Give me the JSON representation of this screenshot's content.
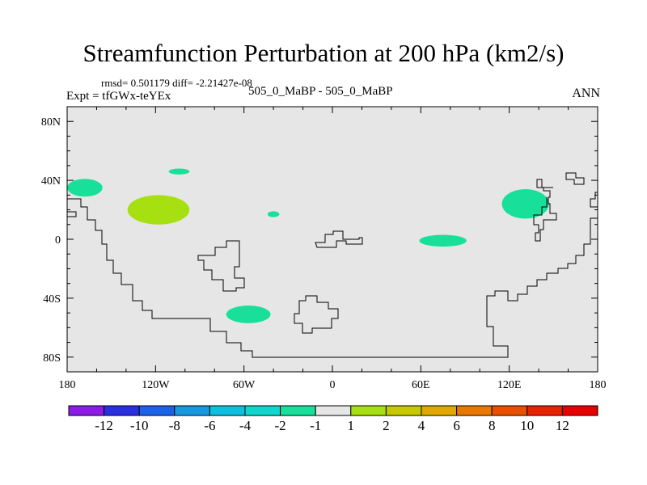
{
  "chart_data": {
    "type": "contour-map",
    "title": "Streamfunction Perturbation at 200 hPa (km2/s)",
    "stats": "rmsd= 0.501179 diff= -2.21427e-08",
    "experiment": "Expt = tfGWx-teYEx",
    "cases": "505_0_MaBP - 505_0_MaBP",
    "period": "ANN",
    "x_range": [
      -180,
      180
    ],
    "y_range": [
      -90,
      90
    ],
    "x_ticks": [
      {
        "value": -180,
        "label": "180"
      },
      {
        "value": -120,
        "label": "120W"
      },
      {
        "value": -60,
        "label": "60W"
      },
      {
        "value": 0,
        "label": "0"
      },
      {
        "value": 60,
        "label": "60E"
      },
      {
        "value": 120,
        "label": "120E"
      },
      {
        "value": 180,
        "label": "180"
      }
    ],
    "y_ticks": [
      {
        "value": 80,
        "label": "80N"
      },
      {
        "value": 40,
        "label": "40N"
      },
      {
        "value": 0,
        "label": "0"
      },
      {
        "value": -40,
        "label": "40S"
      },
      {
        "value": -80,
        "label": "80S"
      }
    ],
    "colorbar": {
      "levels": [
        "-12",
        "-10",
        "-8",
        "-6",
        "-4",
        "-2",
        "-1",
        "1",
        "2",
        "4",
        "6",
        "8",
        "10",
        "12"
      ],
      "colors": [
        "#8c1ce6",
        "#2a2fe0",
        "#1a62e8",
        "#1699e0",
        "#0fbfe0",
        "#10d6d0",
        "#18e09a",
        "#e6e6e6",
        "#a6e010",
        "#c8c800",
        "#e0a800",
        "#e87800",
        "#e85000",
        "#e82200",
        "#e80000"
      ]
    },
    "background_color": "#e6e6e6",
    "regions": [
      {
        "name": "north-pacific-west",
        "lon": -168,
        "lat": 35,
        "rlon": 12,
        "rlat": 6,
        "bin": "-2 to -1",
        "color": "#18e09a"
      },
      {
        "name": "north-pacific-central",
        "lon": -118,
        "lat": 20,
        "rlon": 21,
        "rlat": 10,
        "bin": "1 to 2",
        "color": "#a6e010"
      },
      {
        "name": "north-pacific-northeast",
        "lon": -104,
        "lat": 46,
        "rlon": 7,
        "rlat": 2,
        "bin": "-2 to -1",
        "color": "#18e09a"
      },
      {
        "name": "tropical-atlantic",
        "lon": -40,
        "lat": 17,
        "rlon": 4,
        "rlat": 2,
        "bin": "-2 to -1",
        "color": "#18e09a"
      },
      {
        "name": "south-atlantic",
        "lon": -57,
        "lat": -51,
        "rlon": 15,
        "rlat": 6,
        "bin": "-2 to -1",
        "color": "#18e09a"
      },
      {
        "name": "indian-ocean",
        "lon": 75,
        "lat": -1,
        "rlon": 16,
        "rlat": 4,
        "bin": "-2 to -1",
        "color": "#18e09a"
      },
      {
        "name": "west-pacific",
        "lon": 131,
        "lat": 24,
        "rlon": 16,
        "rlat": 10,
        "bin": "-2 to -1",
        "color": "#18e09a"
      }
    ]
  }
}
